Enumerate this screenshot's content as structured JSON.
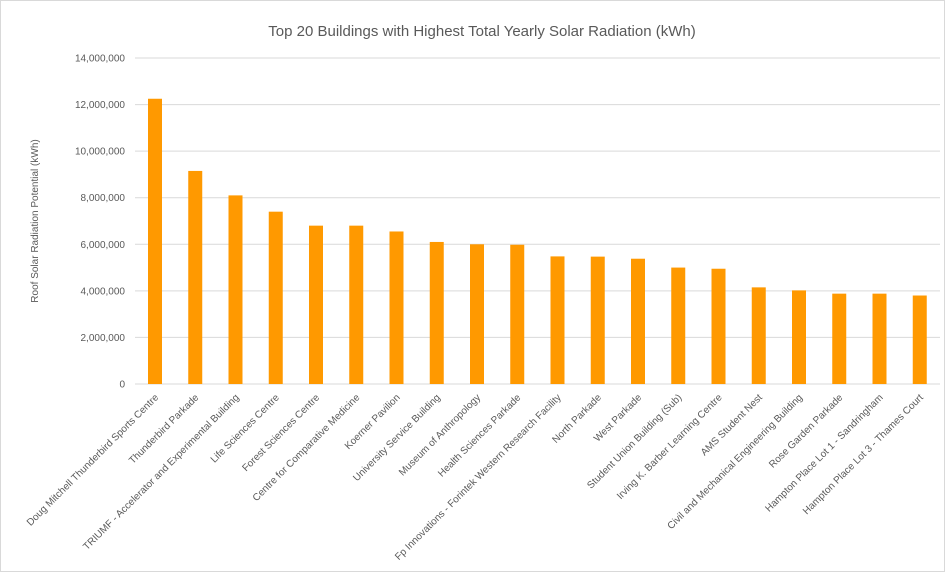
{
  "chart_data": {
    "type": "bar",
    "title": "Top 20 Buildings with Highest Total Yearly Solar Radiation (kWh)",
    "y_label": "Roof Solar Radiation Potential  (kWh)",
    "categories": [
      "Doug Mitchell Thunderbird Sports Centre",
      "Thunderbird Parkade",
      "TRIUMF - Accelerator and Experimental Building",
      "Life Sciences Centre",
      "Forest Sciences Centre",
      "Centre for Comparative Medicine",
      "Koerner Pavilion",
      "University Service Building",
      "Museum of Anthropology",
      "Health Sciences Parkade",
      "Fp Innovations - Forintek Western Research Facility",
      "North Parkade",
      "West Parkade",
      "Student Union Building (Sub)",
      "Irving K. Barber Learning Centre",
      "AMS Student Nest",
      "Civil and Mechanical Engineering Building",
      "Rose Garden Parkade",
      "Hampton Place Lot 1 - Sandringham",
      "Hampton Place Lot 3 - Thames Court"
    ],
    "values": [
      12250000,
      9150000,
      8100000,
      7400000,
      6800000,
      6800000,
      6550000,
      6100000,
      6000000,
      5980000,
      5480000,
      5470000,
      5380000,
      5000000,
      4950000,
      4150000,
      4020000,
      3880000,
      3880000,
      3800000
    ],
    "color": "#ff9900",
    "ylim": [
      0,
      14000000
    ],
    "yticks": [
      0,
      {
        "value": 2000000,
        "label": "2,000,000"
      },
      {
        "value": 4000000,
        "label": "4,000,000"
      },
      {
        "value": 6000000,
        "label": "6,000,000"
      },
      {
        "value": 8000000,
        "label": "8,000,000"
      },
      {
        "value": 10000000,
        "label": "10,000,000"
      },
      {
        "value": 12000000,
        "label": "12,000,000"
      },
      {
        "value": 14000000,
        "label": "14,000,000"
      }
    ],
    "grid": true
  }
}
